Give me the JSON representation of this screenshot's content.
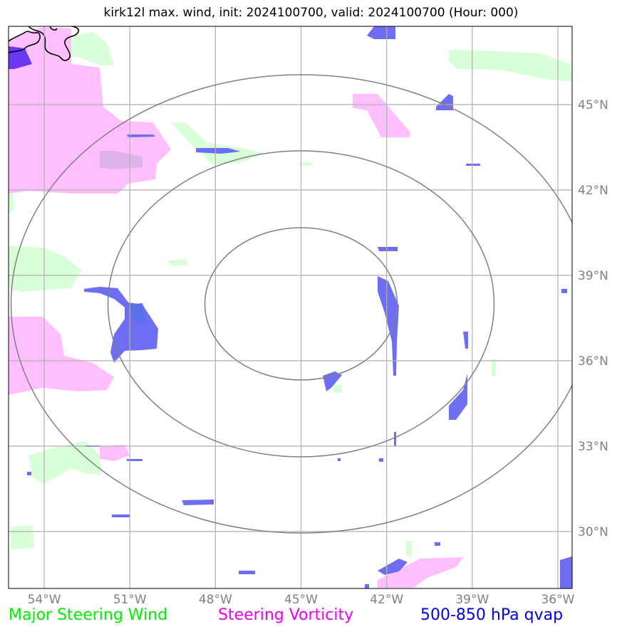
{
  "title": "kirk12l max. wind, init: 2024100700, valid: 2024100700 (Hour: 000)",
  "map": {
    "lon_range": [
      -55.25,
      -35.5
    ],
    "lat_range": [
      28,
      47.75
    ],
    "center": {
      "lon": -45,
      "lat": 38
    },
    "lon_ticks": [
      {
        "value": -54,
        "label": "54°W"
      },
      {
        "value": -51,
        "label": "51°W"
      },
      {
        "value": -48,
        "label": "48°W"
      },
      {
        "value": -45,
        "label": "45°W"
      },
      {
        "value": -42,
        "label": "42°W"
      },
      {
        "value": -39,
        "label": "39°W"
      },
      {
        "value": -36,
        "label": "36°W"
      }
    ],
    "lat_ticks": [
      {
        "value": 45,
        "label": "45°N"
      },
      {
        "value": 42,
        "label": "42°N"
      },
      {
        "value": 39,
        "label": "39°N"
      },
      {
        "value": 36,
        "label": "36°N"
      },
      {
        "value": 33,
        "label": "33°N"
      },
      {
        "value": 30,
        "label": "30°N"
      }
    ],
    "range_rings": "concentric circles around storm center",
    "grid": true
  },
  "colors": {
    "steering_wind": "#00ee00",
    "steering_vorticity": "#ee00ee",
    "qvap": "#0000dd",
    "wind_fill": "#d9ffd9",
    "vort_fill": "#ffbfff",
    "qvap_fill": "#6e6ef5",
    "grid": "#b0b0b0",
    "ring": "#808080"
  },
  "legend": {
    "wind": "Major Steering Wind",
    "vorticity": "Steering Vorticity",
    "qvap": "500-850 hPa qvap"
  }
}
